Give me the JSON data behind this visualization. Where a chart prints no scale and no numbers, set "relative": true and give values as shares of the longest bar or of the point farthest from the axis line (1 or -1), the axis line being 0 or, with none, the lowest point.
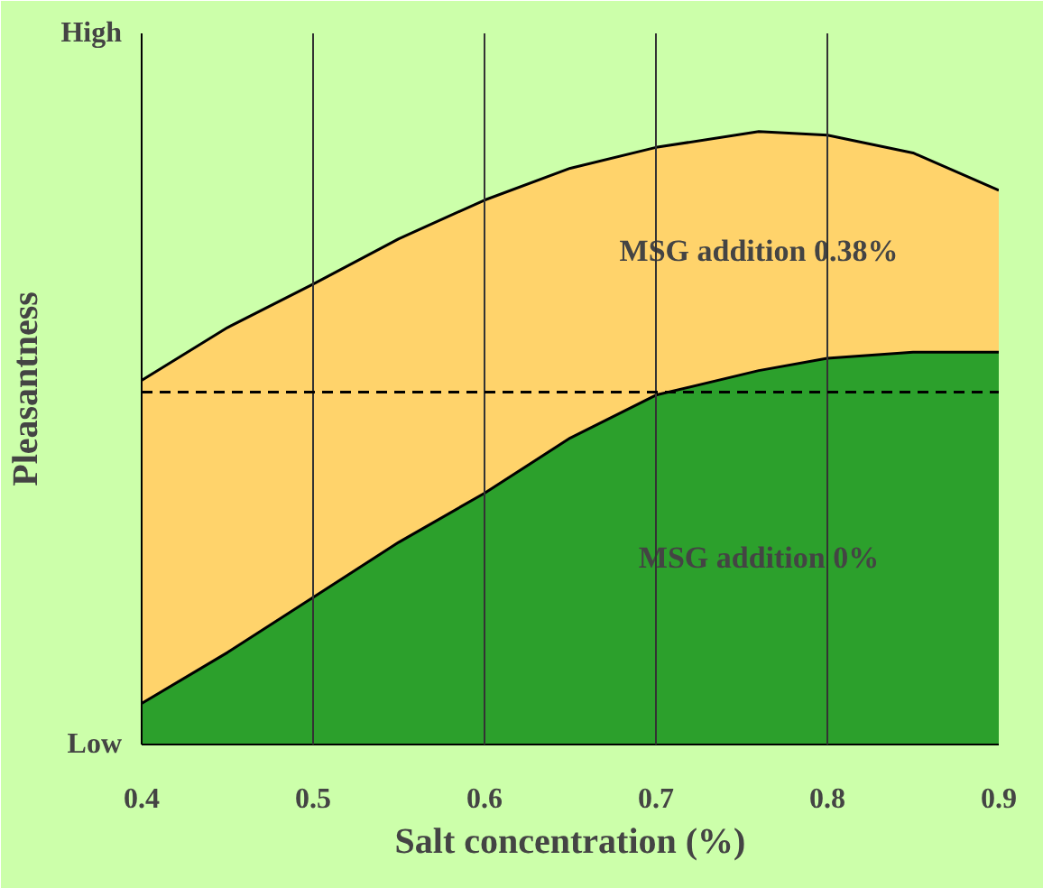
{
  "chart_data": {
    "type": "area",
    "relative": true,
    "xlabel": "Salt concentration (%)",
    "ylabel": "Pleasantness",
    "x": [
      0.4,
      0.45,
      0.5,
      0.55,
      0.6,
      0.65,
      0.7,
      0.76,
      0.8,
      0.85,
      0.9
    ],
    "xlim": [
      0.4,
      0.9
    ],
    "xticks": [
      {
        "value": 0.4,
        "label": "0.4"
      },
      {
        "value": 0.5,
        "label": "0.5"
      },
      {
        "value": 0.6,
        "label": "0.6"
      },
      {
        "value": 0.7,
        "label": "0.7"
      },
      {
        "value": 0.8,
        "label": "0.8"
      },
      {
        "value": 0.9,
        "label": "0.9"
      }
    ],
    "series": [
      {
        "name": "MSG addition 0.38%",
        "color": "#ffd36b",
        "values": [
          0.594,
          0.68,
          0.751,
          0.825,
          0.888,
          0.94,
          0.974,
          1,
          0.994,
          0.965,
          0.904
        ]
      },
      {
        "name": "MSG addition 0%",
        "color": "#2ca02c",
        "values": [
          0.067,
          0.15,
          0.24,
          0.33,
          0.41,
          0.5,
          0.57,
          0.61,
          0.63,
          0.64,
          0.64
        ]
      }
    ],
    "ref_lines": [
      {
        "axis": "y",
        "value": 0.575,
        "color": "#000000",
        "line_style": "dashed"
      }
    ],
    "annotations": [
      "Low",
      "High"
    ],
    "grid": "x"
  }
}
